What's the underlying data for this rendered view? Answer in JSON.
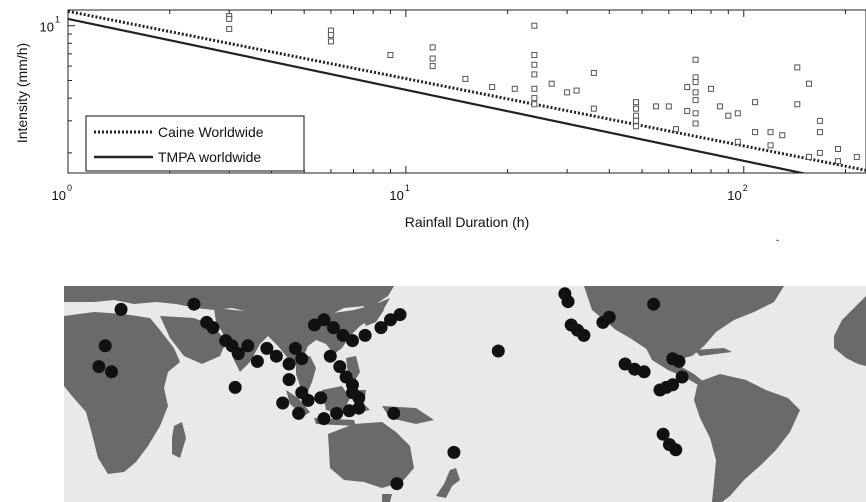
{
  "chart_data": {
    "type": "scatter",
    "xscale": "log",
    "yscale": "log",
    "xlim": [
      1,
      230
    ],
    "ylim": [
      1.55,
      12.2
    ],
    "xlabel": "Rainfall Duration (h)",
    "ylabel": "Intensity (mm/h)",
    "x_ticks": [
      {
        "value": 1,
        "base": "10",
        "exp": "0"
      },
      {
        "value": 10,
        "base": "10",
        "exp": "1"
      },
      {
        "value": 100,
        "base": "10",
        "exp": "2"
      }
    ],
    "y_ticks": [
      {
        "value": 10,
        "base": "10",
        "exp": "1"
      }
    ],
    "legend": {
      "placement": "lower-left",
      "entries": [
        {
          "label": "Caine Worldwide",
          "style": "dotted"
        },
        {
          "label": "TMPA worldwide",
          "style": "solid"
        }
      ]
    },
    "lines": [
      {
        "name": "Caine Worldwide",
        "a": 12.0,
        "b": -0.37,
        "style": "dotted",
        "color": "#222222"
      },
      {
        "name": "TMPA worldwide",
        "a": 10.9,
        "b": -0.39,
        "style": "solid",
        "color": "#222222"
      }
    ],
    "points": [
      {
        "x": 3,
        "y": 11.3
      },
      {
        "x": 3,
        "y": 10.9
      },
      {
        "x": 3,
        "y": 9.6
      },
      {
        "x": 6,
        "y": 9.4
      },
      {
        "x": 6,
        "y": 8.9
      },
      {
        "x": 6,
        "y": 8.2
      },
      {
        "x": 9,
        "y": 6.9
      },
      {
        "x": 12,
        "y": 7.6
      },
      {
        "x": 12,
        "y": 6.6
      },
      {
        "x": 12,
        "y": 6.0
      },
      {
        "x": 15,
        "y": 5.1
      },
      {
        "x": 18,
        "y": 4.6
      },
      {
        "x": 21,
        "y": 4.5
      },
      {
        "x": 24,
        "y": 10.0
      },
      {
        "x": 24,
        "y": 6.9
      },
      {
        "x": 24,
        "y": 6.1
      },
      {
        "x": 24,
        "y": 5.4
      },
      {
        "x": 24,
        "y": 4.5
      },
      {
        "x": 24,
        "y": 4.0
      },
      {
        "x": 24,
        "y": 3.7
      },
      {
        "x": 27,
        "y": 4.8
      },
      {
        "x": 30,
        "y": 4.3
      },
      {
        "x": 32,
        "y": 4.4
      },
      {
        "x": 36,
        "y": 5.5
      },
      {
        "x": 36,
        "y": 3.5
      },
      {
        "x": 48,
        "y": 3.8
      },
      {
        "x": 48,
        "y": 3.5
      },
      {
        "x": 48,
        "y": 3.2
      },
      {
        "x": 48,
        "y": 3.0
      },
      {
        "x": 48,
        "y": 2.8
      },
      {
        "x": 55,
        "y": 3.6
      },
      {
        "x": 60,
        "y": 3.6
      },
      {
        "x": 63,
        "y": 2.7
      },
      {
        "x": 68,
        "y": 3.4
      },
      {
        "x": 68,
        "y": 4.6
      },
      {
        "x": 72,
        "y": 6.5
      },
      {
        "x": 72,
        "y": 5.2
      },
      {
        "x": 72,
        "y": 4.9
      },
      {
        "x": 72,
        "y": 4.3
      },
      {
        "x": 72,
        "y": 3.9
      },
      {
        "x": 72,
        "y": 3.3
      },
      {
        "x": 72,
        "y": 2.9
      },
      {
        "x": 80,
        "y": 4.5
      },
      {
        "x": 85,
        "y": 3.6
      },
      {
        "x": 90,
        "y": 3.2
      },
      {
        "x": 96,
        "y": 3.3
      },
      {
        "x": 96,
        "y": 2.3
      },
      {
        "x": 108,
        "y": 3.8
      },
      {
        "x": 108,
        "y": 2.6
      },
      {
        "x": 120,
        "y": 2.6
      },
      {
        "x": 120,
        "y": 2.2
      },
      {
        "x": 130,
        "y": 2.5
      },
      {
        "x": 144,
        "y": 5.9
      },
      {
        "x": 144,
        "y": 3.7
      },
      {
        "x": 156,
        "y": 4.8
      },
      {
        "x": 156,
        "y": 1.9
      },
      {
        "x": 168,
        "y": 3.0
      },
      {
        "x": 168,
        "y": 2.6
      },
      {
        "x": 168,
        "y": 2.0
      },
      {
        "x": 190,
        "y": 2.1
      },
      {
        "x": 190,
        "y": 1.8
      },
      {
        "x": 216,
        "y": 1.9
      }
    ]
  },
  "map": {
    "ocean_color": "#e9e9e9",
    "land_color": "#6a6a6a",
    "marker_color": "#111111",
    "events": [
      {
        "lon": 37,
        "lat": 32
      },
      {
        "lon": 32,
        "lat": 18
      },
      {
        "lon": 30,
        "lat": 10
      },
      {
        "lon": 34,
        "lat": 8
      },
      {
        "lon": 60,
        "lat": 34
      },
      {
        "lon": 64,
        "lat": 27
      },
      {
        "lon": 66,
        "lat": 25
      },
      {
        "lon": 70,
        "lat": 20
      },
      {
        "lon": 72,
        "lat": 18
      },
      {
        "lon": 74,
        "lat": 15
      },
      {
        "lon": 77,
        "lat": 18
      },
      {
        "lon": 80,
        "lat": 12
      },
      {
        "lon": 83,
        "lat": 17
      },
      {
        "lon": 86,
        "lat": 14
      },
      {
        "lon": 90,
        "lat": 11
      },
      {
        "lon": 92,
        "lat": 17
      },
      {
        "lon": 94,
        "lat": 13
      },
      {
        "lon": 73,
        "lat": 2
      },
      {
        "lon": 98,
        "lat": 26
      },
      {
        "lon": 101,
        "lat": 28
      },
      {
        "lon": 104,
        "lat": 25
      },
      {
        "lon": 107,
        "lat": 22
      },
      {
        "lon": 110,
        "lat": 20
      },
      {
        "lon": 114,
        "lat": 22
      },
      {
        "lon": 119,
        "lat": 25
      },
      {
        "lon": 122,
        "lat": 28
      },
      {
        "lon": 125,
        "lat": 30
      },
      {
        "lon": 103,
        "lat": 14
      },
      {
        "lon": 106,
        "lat": 10
      },
      {
        "lon": 108,
        "lat": 6
      },
      {
        "lon": 110,
        "lat": 3
      },
      {
        "lon": 110,
        "lat": 0
      },
      {
        "lon": 90,
        "lat": 5
      },
      {
        "lon": 94,
        "lat": 0
      },
      {
        "lon": 96,
        "lat": -3
      },
      {
        "lon": 100,
        "lat": -2
      },
      {
        "lon": 88,
        "lat": -4
      },
      {
        "lon": 93,
        "lat": -8
      },
      {
        "lon": 101,
        "lat": -10
      },
      {
        "lon": 105,
        "lat": -8
      },
      {
        "lon": 109,
        "lat": -7
      },
      {
        "lon": 112,
        "lat": -2
      },
      {
        "lon": 112,
        "lat": -6
      },
      {
        "lon": 123,
        "lat": -8
      },
      {
        "lon": 124,
        "lat": -35
      },
      {
        "lon": 142,
        "lat": -23
      },
      {
        "lon": 139,
        "lat": -45
      },
      {
        "lon": 137,
        "lat": -47
      },
      {
        "lon": 156,
        "lat": 16
      },
      {
        "lon": 177,
        "lat": 38
      },
      {
        "lon": 178,
        "lat": 35
      },
      {
        "lon": 179,
        "lat": 26
      },
      {
        "lon": 181,
        "lat": 24
      },
      {
        "lon": 183,
        "lat": 22
      },
      {
        "lon": 189,
        "lat": 27
      },
      {
        "lon": 191,
        "lat": 29
      },
      {
        "lon": 205,
        "lat": 34
      },
      {
        "lon": 196,
        "lat": 11
      },
      {
        "lon": 199,
        "lat": 9
      },
      {
        "lon": 202,
        "lat": 8
      },
      {
        "lon": 211,
        "lat": 13
      },
      {
        "lon": 213,
        "lat": 12
      },
      {
        "lon": 214,
        "lat": 6
      },
      {
        "lon": 207,
        "lat": 1
      },
      {
        "lon": 209,
        "lat": 2
      },
      {
        "lon": 211,
        "lat": 3
      },
      {
        "lon": 208,
        "lat": -16
      },
      {
        "lon": 210,
        "lat": -20
      },
      {
        "lon": 212,
        "lat": -22
      }
    ]
  }
}
